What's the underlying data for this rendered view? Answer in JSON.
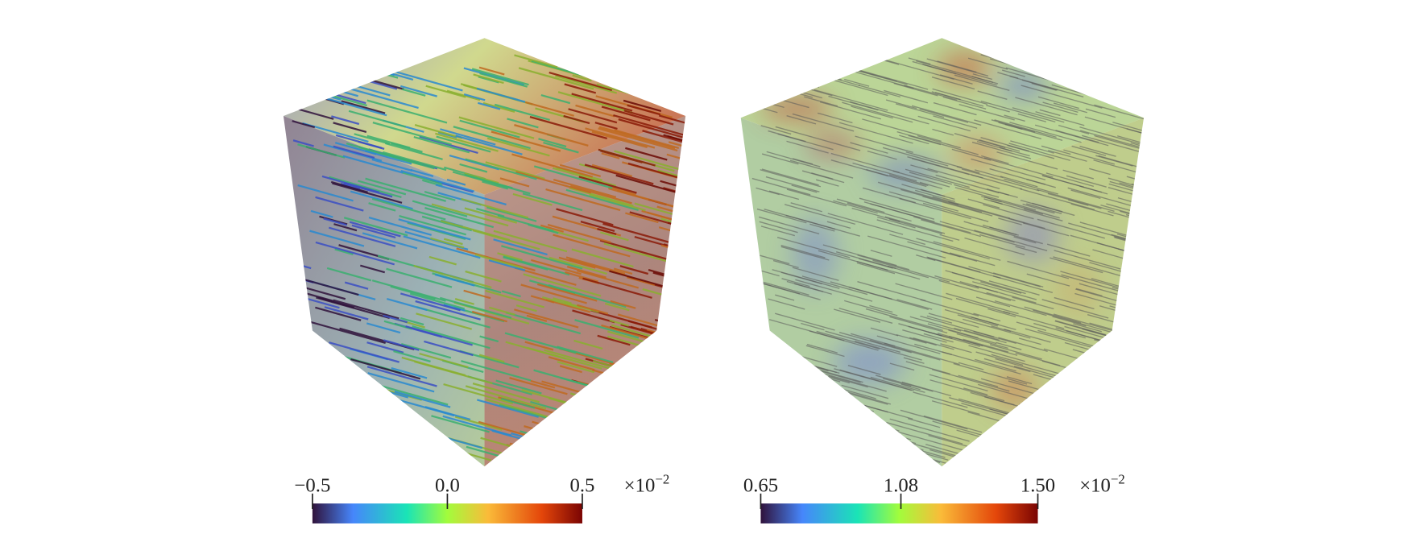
{
  "panels": [
    {
      "colorbar": {
        "range": [
          -0.5,
          0.5
        ],
        "ticks": [
          {
            "value": -0.5,
            "label": "−0.5"
          },
          {
            "value": 0.0,
            "label": "0.0"
          },
          0.5
        ],
        "multiplier": {
          "base": "×10",
          "exponent": "−2"
        }
      }
    },
    {
      "colorbar": {
        "range": [
          0.65,
          1.5
        ],
        "ticks": [
          0.65,
          1.08,
          {
            "value": 1.5,
            "label": "1.50"
          }
        ],
        "multiplier": {
          "base": "×10",
          "exponent": "−2"
        }
      }
    }
  ]
}
